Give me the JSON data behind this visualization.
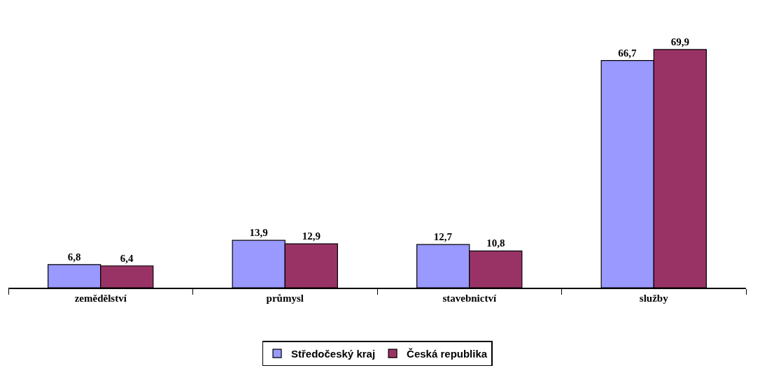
{
  "chart_data": {
    "type": "bar",
    "categories": [
      "zemědělství",
      "průmysl",
      "stavebnictví",
      "služby"
    ],
    "series": [
      {
        "name": "Středočeský kraj",
        "color": "#9999ff",
        "values": [
          6.8,
          13.9,
          12.7,
          66.7
        ],
        "value_labels": [
          "6,8",
          "13,9",
          "12,7",
          "66,7"
        ]
      },
      {
        "name": "Česká republika",
        "color": "#993366",
        "values": [
          6.4,
          12.9,
          10.8,
          69.9
        ],
        "value_labels": [
          "6,4",
          "12,9",
          "10,8",
          "69,9"
        ]
      }
    ],
    "legend": "bottom",
    "tick_labels": "x"
  }
}
